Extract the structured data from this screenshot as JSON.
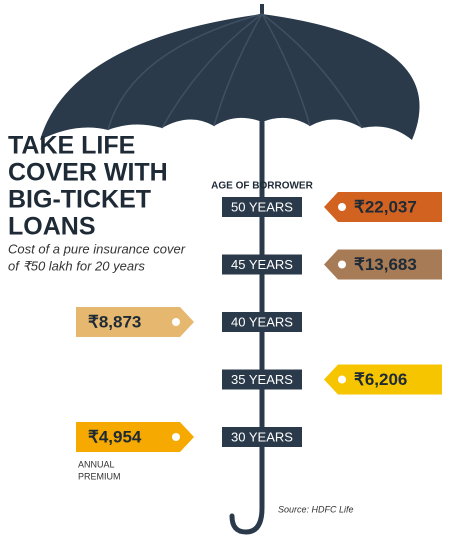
{
  "title_lines": [
    "TAKE LIFE",
    "COVER WITH",
    "BIG-TICKET",
    "LOANS"
  ],
  "subtitle_lines": [
    "Cost of a pure insurance cover",
    "of ₹50 lakh for 20 years"
  ],
  "axis_label": "AGE OF BORROWER",
  "items": [
    {
      "age": "50 YEARS",
      "premium": "₹22,037",
      "color": "#d2621f"
    },
    {
      "age": "45 YEARS",
      "premium": "₹13,683",
      "color": "#a67b56"
    },
    {
      "age": "40 YEARS",
      "premium": "₹8,873",
      "color": "#e6b76e"
    },
    {
      "age": "35 YEARS",
      "premium": "₹6,206",
      "color": "#f6c500"
    },
    {
      "age": "30 YEARS",
      "premium": "₹4,954",
      "color": "#f6a900"
    }
  ],
  "footnote_lines": [
    "ANNUAL",
    "PREMIUM"
  ],
  "source": "Source: HDFC Life"
}
